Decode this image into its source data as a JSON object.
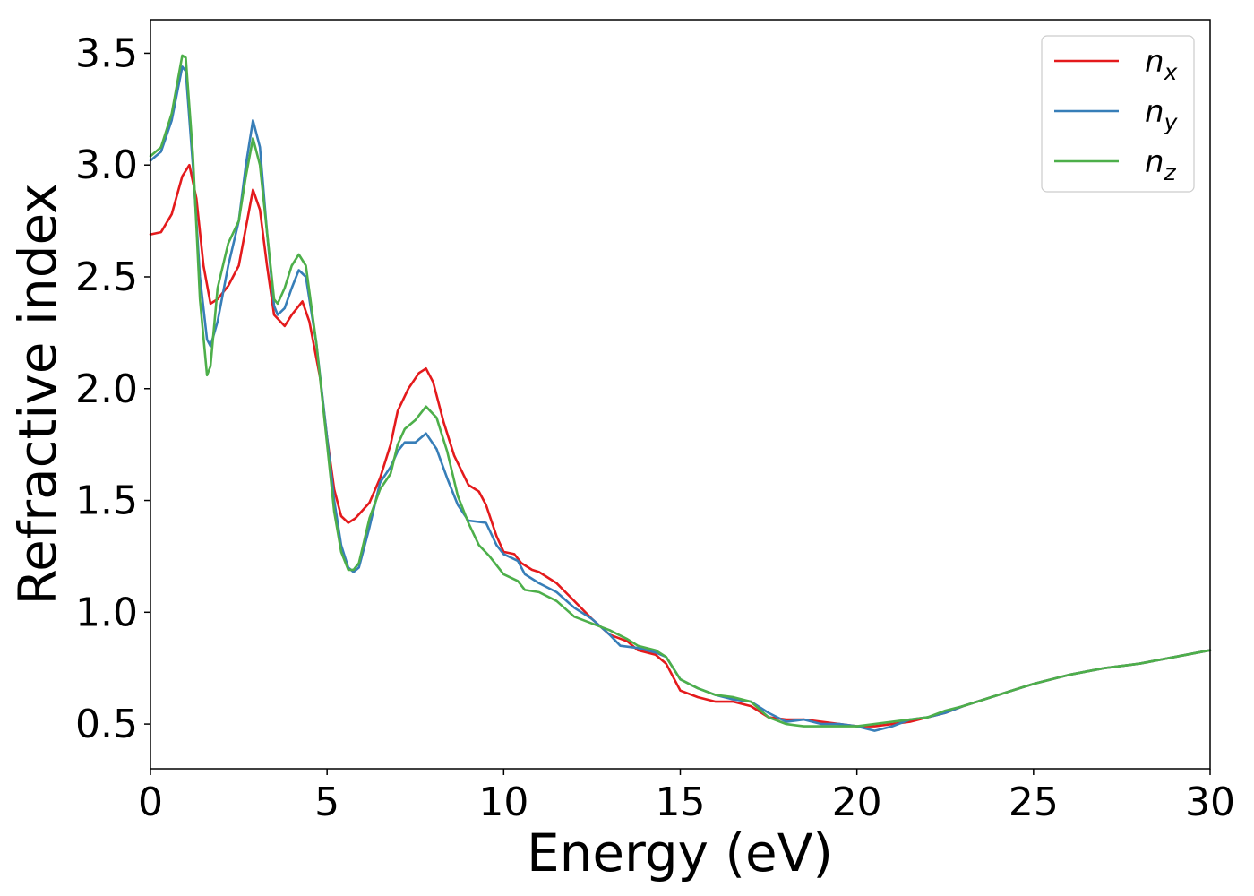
{
  "chart_data": {
    "type": "line",
    "title": "",
    "xlabel": "Energy (eV)",
    "ylabel": "Refractive index",
    "xlim": [
      0,
      30
    ],
    "ylim": [
      0.3,
      3.65
    ],
    "xticks": [
      0,
      5,
      10,
      15,
      20,
      25,
      30
    ],
    "xtick_labels": [
      "0",
      "5",
      "10",
      "15",
      "20",
      "25",
      "30"
    ],
    "yticks": [
      0.5,
      1.0,
      1.5,
      2.0,
      2.5,
      3.0,
      3.5
    ],
    "ytick_labels": [
      "0.5",
      "1.0",
      "1.5",
      "2.0",
      "2.5",
      "3.0",
      "3.5"
    ],
    "grid": false,
    "legend_position": "top-right",
    "series": [
      {
        "name": "n",
        "subscript": "x",
        "color": "#e41a1c",
        "points": [
          [
            0,
            2.69
          ],
          [
            0.3,
            2.7
          ],
          [
            0.6,
            2.78
          ],
          [
            0.9,
            2.95
          ],
          [
            1.1,
            3.0
          ],
          [
            1.3,
            2.85
          ],
          [
            1.5,
            2.55
          ],
          [
            1.7,
            2.38
          ],
          [
            1.9,
            2.4
          ],
          [
            2.2,
            2.46
          ],
          [
            2.5,
            2.55
          ],
          [
            2.7,
            2.72
          ],
          [
            2.9,
            2.89
          ],
          [
            3.1,
            2.8
          ],
          [
            3.3,
            2.55
          ],
          [
            3.5,
            2.33
          ],
          [
            3.8,
            2.28
          ],
          [
            4.0,
            2.33
          ],
          [
            4.3,
            2.39
          ],
          [
            4.5,
            2.3
          ],
          [
            4.8,
            2.05
          ],
          [
            5.0,
            1.78
          ],
          [
            5.2,
            1.55
          ],
          [
            5.4,
            1.43
          ],
          [
            5.6,
            1.4
          ],
          [
            5.8,
            1.42
          ],
          [
            6.2,
            1.49
          ],
          [
            6.5,
            1.6
          ],
          [
            6.8,
            1.75
          ],
          [
            7.0,
            1.9
          ],
          [
            7.3,
            2.0
          ],
          [
            7.6,
            2.07
          ],
          [
            7.8,
            2.09
          ],
          [
            8.0,
            2.03
          ],
          [
            8.3,
            1.85
          ],
          [
            8.6,
            1.7
          ],
          [
            9.0,
            1.57
          ],
          [
            9.3,
            1.54
          ],
          [
            9.5,
            1.48
          ],
          [
            9.8,
            1.34
          ],
          [
            10.0,
            1.27
          ],
          [
            10.3,
            1.26
          ],
          [
            10.5,
            1.22
          ],
          [
            10.8,
            1.19
          ],
          [
            11.0,
            1.18
          ],
          [
            11.5,
            1.13
          ],
          [
            12.0,
            1.05
          ],
          [
            12.5,
            0.97
          ],
          [
            13.0,
            0.9
          ],
          [
            13.5,
            0.87
          ],
          [
            13.8,
            0.83
          ],
          [
            14.3,
            0.81
          ],
          [
            14.6,
            0.77
          ],
          [
            15.0,
            0.65
          ],
          [
            15.5,
            0.62
          ],
          [
            16.0,
            0.6
          ],
          [
            16.5,
            0.6
          ],
          [
            17.0,
            0.58
          ],
          [
            17.5,
            0.53
          ],
          [
            18.0,
            0.52
          ],
          [
            18.5,
            0.52
          ],
          [
            19.0,
            0.51
          ],
          [
            19.5,
            0.5
          ],
          [
            20.0,
            0.49
          ],
          [
            20.5,
            0.49
          ],
          [
            21.0,
            0.5
          ],
          [
            21.5,
            0.51
          ],
          [
            22.0,
            0.53
          ],
          [
            22.5,
            0.55
          ],
          [
            23.0,
            0.58
          ],
          [
            24.0,
            0.63
          ],
          [
            25.0,
            0.68
          ],
          [
            26.0,
            0.72
          ],
          [
            27.0,
            0.75
          ],
          [
            28.0,
            0.77
          ],
          [
            29.0,
            0.8
          ],
          [
            30.0,
            0.83
          ]
        ]
      },
      {
        "name": "n",
        "subscript": "y",
        "color": "#377eb8",
        "points": [
          [
            0,
            3.02
          ],
          [
            0.3,
            3.06
          ],
          [
            0.6,
            3.2
          ],
          [
            0.9,
            3.44
          ],
          [
            1.0,
            3.42
          ],
          [
            1.2,
            3.0
          ],
          [
            1.4,
            2.5
          ],
          [
            1.6,
            2.22
          ],
          [
            1.7,
            2.19
          ],
          [
            1.9,
            2.3
          ],
          [
            2.2,
            2.55
          ],
          [
            2.5,
            2.75
          ],
          [
            2.7,
            3.0
          ],
          [
            2.9,
            3.2
          ],
          [
            3.1,
            3.08
          ],
          [
            3.3,
            2.7
          ],
          [
            3.5,
            2.37
          ],
          [
            3.6,
            2.33
          ],
          [
            3.8,
            2.36
          ],
          [
            4.0,
            2.45
          ],
          [
            4.2,
            2.53
          ],
          [
            4.4,
            2.5
          ],
          [
            4.7,
            2.2
          ],
          [
            5.0,
            1.78
          ],
          [
            5.2,
            1.5
          ],
          [
            5.4,
            1.3
          ],
          [
            5.6,
            1.2
          ],
          [
            5.75,
            1.18
          ],
          [
            5.9,
            1.2
          ],
          [
            6.2,
            1.38
          ],
          [
            6.5,
            1.58
          ],
          [
            6.8,
            1.65
          ],
          [
            7.0,
            1.72
          ],
          [
            7.2,
            1.76
          ],
          [
            7.5,
            1.76
          ],
          [
            7.8,
            1.8
          ],
          [
            8.1,
            1.73
          ],
          [
            8.4,
            1.6
          ],
          [
            8.7,
            1.48
          ],
          [
            9.0,
            1.41
          ],
          [
            9.5,
            1.4
          ],
          [
            9.8,
            1.3
          ],
          [
            10.0,
            1.26
          ],
          [
            10.4,
            1.23
          ],
          [
            10.6,
            1.17
          ],
          [
            11.0,
            1.13
          ],
          [
            11.5,
            1.09
          ],
          [
            12.0,
            1.02
          ],
          [
            12.5,
            0.97
          ],
          [
            13.0,
            0.9
          ],
          [
            13.3,
            0.85
          ],
          [
            13.8,
            0.84
          ],
          [
            14.3,
            0.82
          ],
          [
            14.6,
            0.8
          ],
          [
            15.0,
            0.7
          ],
          [
            15.5,
            0.66
          ],
          [
            16.0,
            0.63
          ],
          [
            16.5,
            0.61
          ],
          [
            17.0,
            0.6
          ],
          [
            17.5,
            0.55
          ],
          [
            18.0,
            0.51
          ],
          [
            18.5,
            0.52
          ],
          [
            19.0,
            0.5
          ],
          [
            19.5,
            0.5
          ],
          [
            20.0,
            0.49
          ],
          [
            20.5,
            0.47
          ],
          [
            21.0,
            0.49
          ],
          [
            21.5,
            0.52
          ],
          [
            22.0,
            0.53
          ],
          [
            22.5,
            0.55
          ],
          [
            23.0,
            0.58
          ],
          [
            24.0,
            0.63
          ],
          [
            25.0,
            0.68
          ],
          [
            26.0,
            0.72
          ],
          [
            27.0,
            0.75
          ],
          [
            28.0,
            0.77
          ],
          [
            29.0,
            0.8
          ],
          [
            30.0,
            0.83
          ]
        ]
      },
      {
        "name": "n",
        "subscript": "z",
        "color": "#4daf4a",
        "points": [
          [
            0,
            3.04
          ],
          [
            0.3,
            3.08
          ],
          [
            0.6,
            3.23
          ],
          [
            0.9,
            3.49
          ],
          [
            1.0,
            3.48
          ],
          [
            1.2,
            3.05
          ],
          [
            1.4,
            2.4
          ],
          [
            1.6,
            2.06
          ],
          [
            1.7,
            2.1
          ],
          [
            1.9,
            2.45
          ],
          [
            2.2,
            2.65
          ],
          [
            2.5,
            2.75
          ],
          [
            2.7,
            2.95
          ],
          [
            2.9,
            3.12
          ],
          [
            3.1,
            3.0
          ],
          [
            3.3,
            2.7
          ],
          [
            3.5,
            2.4
          ],
          [
            3.6,
            2.38
          ],
          [
            3.8,
            2.45
          ],
          [
            4.0,
            2.55
          ],
          [
            4.2,
            2.6
          ],
          [
            4.4,
            2.55
          ],
          [
            4.7,
            2.2
          ],
          [
            5.0,
            1.75
          ],
          [
            5.2,
            1.45
          ],
          [
            5.4,
            1.27
          ],
          [
            5.6,
            1.19
          ],
          [
            5.75,
            1.19
          ],
          [
            5.9,
            1.22
          ],
          [
            6.2,
            1.42
          ],
          [
            6.5,
            1.55
          ],
          [
            6.8,
            1.62
          ],
          [
            7.0,
            1.75
          ],
          [
            7.2,
            1.82
          ],
          [
            7.5,
            1.86
          ],
          [
            7.8,
            1.92
          ],
          [
            8.1,
            1.87
          ],
          [
            8.4,
            1.72
          ],
          [
            8.7,
            1.52
          ],
          [
            9.0,
            1.4
          ],
          [
            9.3,
            1.3
          ],
          [
            9.6,
            1.25
          ],
          [
            10.0,
            1.17
          ],
          [
            10.4,
            1.14
          ],
          [
            10.6,
            1.1
          ],
          [
            11.0,
            1.09
          ],
          [
            11.5,
            1.05
          ],
          [
            12.0,
            0.98
          ],
          [
            12.5,
            0.95
          ],
          [
            13.0,
            0.92
          ],
          [
            13.5,
            0.88
          ],
          [
            13.8,
            0.85
          ],
          [
            14.3,
            0.83
          ],
          [
            14.6,
            0.8
          ],
          [
            15.0,
            0.7
          ],
          [
            15.5,
            0.66
          ],
          [
            16.0,
            0.63
          ],
          [
            16.5,
            0.62
          ],
          [
            17.0,
            0.6
          ],
          [
            17.5,
            0.53
          ],
          [
            18.0,
            0.5
          ],
          [
            18.5,
            0.49
          ],
          [
            19.0,
            0.49
          ],
          [
            19.5,
            0.49
          ],
          [
            20.0,
            0.49
          ],
          [
            20.5,
            0.5
          ],
          [
            21.0,
            0.51
          ],
          [
            21.5,
            0.52
          ],
          [
            22.0,
            0.53
          ],
          [
            22.5,
            0.56
          ],
          [
            23.0,
            0.58
          ],
          [
            24.0,
            0.63
          ],
          [
            25.0,
            0.68
          ],
          [
            26.0,
            0.72
          ],
          [
            27.0,
            0.75
          ],
          [
            28.0,
            0.77
          ],
          [
            29.0,
            0.8
          ],
          [
            30.0,
            0.83
          ]
        ]
      }
    ]
  }
}
